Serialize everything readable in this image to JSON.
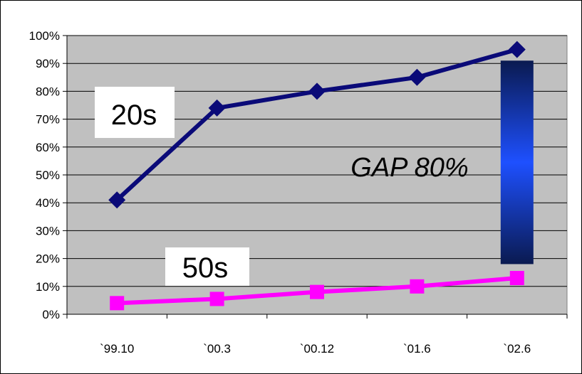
{
  "chart_data": {
    "type": "line",
    "categories": [
      "`99.10",
      "`00.3",
      "`00.12",
      "`01.6",
      "`02.6"
    ],
    "series": [
      {
        "name": "20s",
        "values": [
          41,
          74,
          80,
          85,
          95
        ],
        "color": "#0a0a78",
        "marker": "diamond"
      },
      {
        "name": "50s",
        "values": [
          4,
          5.5,
          8,
          10,
          13
        ],
        "color": "#ff00ff",
        "marker": "square"
      }
    ],
    "y_ticks": [
      "0%",
      "10%",
      "20%",
      "30%",
      "40%",
      "50%",
      "60%",
      "70%",
      "80%",
      "90%",
      "100%"
    ],
    "ylim": [
      0,
      100
    ],
    "grid": true,
    "plot_background": "#c0c0c0",
    "annotations": {
      "gap_label": "GAP 80%",
      "gap_bar_range": [
        18,
        91
      ],
      "gap_bar_colors": [
        "#0a1a50",
        "#1e50ff"
      ]
    },
    "title": "",
    "xlabel": "",
    "ylabel": ""
  }
}
